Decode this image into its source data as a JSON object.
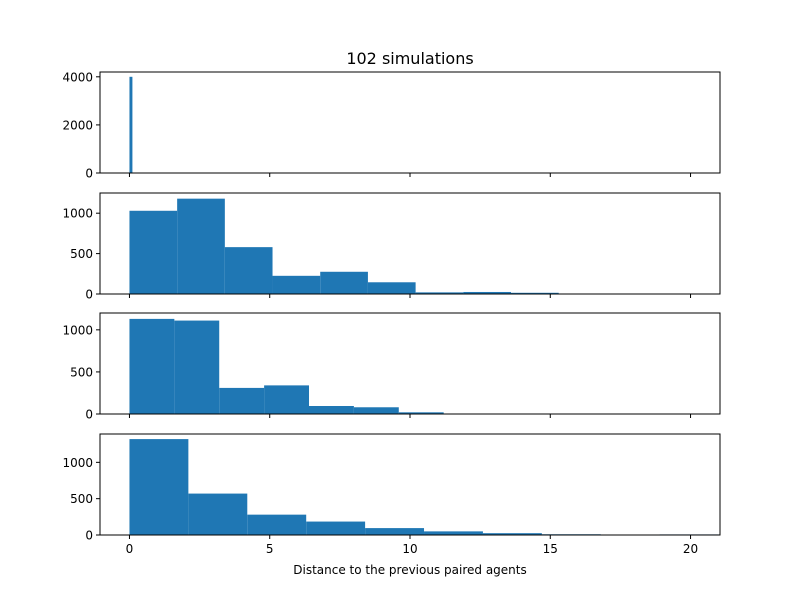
{
  "chart_data": {
    "type": "bar",
    "title": "102 simulations",
    "xlabel": "Distance to the previous paired agents",
    "xlim": [
      -1.05,
      21.05
    ],
    "xticks": [
      0,
      5,
      10,
      15,
      20
    ],
    "bar_color": "#1f77b4",
    "panels": [
      {
        "ylim": [
          0,
          4200
        ],
        "yticks": [
          0,
          2000,
          4000
        ],
        "bins": [
          {
            "x0": 0.0,
            "x1": 0.105,
            "value": 4000
          }
        ]
      },
      {
        "ylim": [
          0,
          1250
        ],
        "yticks": [
          0,
          500,
          1000
        ],
        "bins": [
          {
            "x0": 0.0,
            "x1": 1.7,
            "value": 1030
          },
          {
            "x0": 1.7,
            "x1": 3.4,
            "value": 1180
          },
          {
            "x0": 3.4,
            "x1": 5.1,
            "value": 580
          },
          {
            "x0": 5.1,
            "x1": 6.8,
            "value": 225
          },
          {
            "x0": 6.8,
            "x1": 8.5,
            "value": 275
          },
          {
            "x0": 8.5,
            "x1": 10.2,
            "value": 145
          },
          {
            "x0": 10.2,
            "x1": 11.9,
            "value": 20
          },
          {
            "x0": 11.9,
            "x1": 13.6,
            "value": 25
          },
          {
            "x0": 13.6,
            "x1": 15.3,
            "value": 15
          },
          {
            "x0": 15.3,
            "x1": 17.0,
            "value": 5
          }
        ]
      },
      {
        "ylim": [
          0,
          1200
        ],
        "yticks": [
          0,
          500,
          1000
        ],
        "bins": [
          {
            "x0": 0.0,
            "x1": 1.6,
            "value": 1130
          },
          {
            "x0": 1.6,
            "x1": 3.2,
            "value": 1110
          },
          {
            "x0": 3.2,
            "x1": 4.8,
            "value": 310
          },
          {
            "x0": 4.8,
            "x1": 6.4,
            "value": 340
          },
          {
            "x0": 6.4,
            "x1": 8.0,
            "value": 95
          },
          {
            "x0": 8.0,
            "x1": 9.6,
            "value": 80
          },
          {
            "x0": 9.6,
            "x1": 11.2,
            "value": 20
          }
        ]
      },
      {
        "ylim": [
          0,
          1390
        ],
        "yticks": [
          0,
          500,
          1000
        ],
        "bins": [
          {
            "x0": 0.0,
            "x1": 2.1,
            "value": 1320
          },
          {
            "x0": 2.1,
            "x1": 4.2,
            "value": 570
          },
          {
            "x0": 4.2,
            "x1": 6.3,
            "value": 280
          },
          {
            "x0": 6.3,
            "x1": 8.4,
            "value": 185
          },
          {
            "x0": 8.4,
            "x1": 10.5,
            "value": 95
          },
          {
            "x0": 10.5,
            "x1": 12.6,
            "value": 50
          },
          {
            "x0": 12.6,
            "x1": 14.7,
            "value": 25
          },
          {
            "x0": 14.7,
            "x1": 16.8,
            "value": 10
          },
          {
            "x0": 16.8,
            "x1": 18.9,
            "value": 0
          },
          {
            "x0": 18.9,
            "x1": 21.0,
            "value": 8
          }
        ]
      }
    ]
  }
}
